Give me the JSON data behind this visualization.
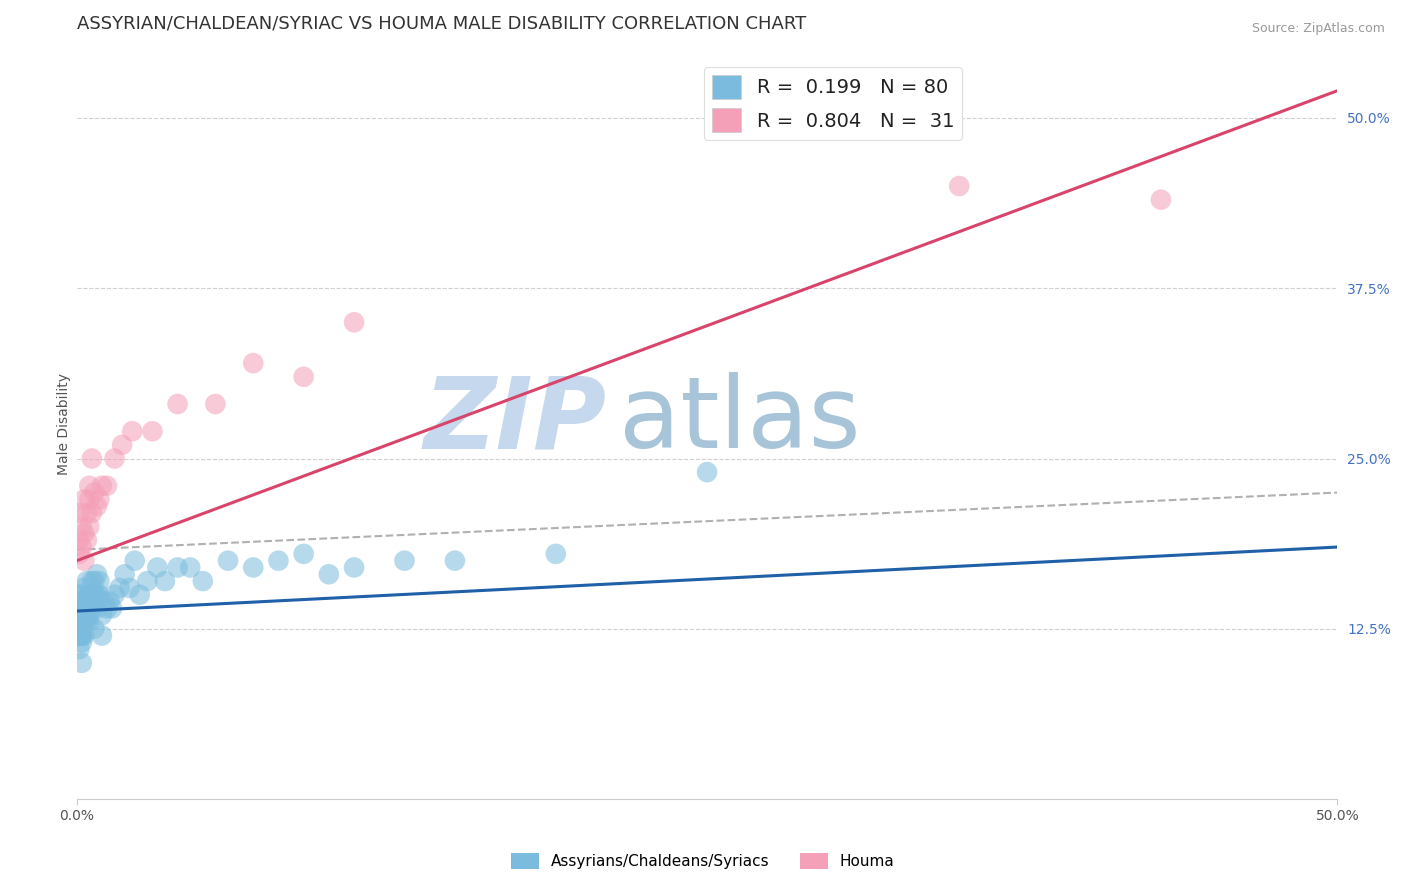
{
  "title": "ASSYRIAN/CHALDEAN/SYRIAC VS HOUMA MALE DISABILITY CORRELATION CHART",
  "source_text": "Source: ZipAtlas.com",
  "ylabel": "Male Disability",
  "xlim": [
    0.0,
    0.5
  ],
  "ylim": [
    0.0,
    0.55
  ],
  "yticks_right": [
    0.125,
    0.25,
    0.375,
    0.5
  ],
  "ytick_labels_right": [
    "12.5%",
    "25.0%",
    "37.5%",
    "50.0%"
  ],
  "blue_color": "#7bbcde",
  "pink_color": "#f4a0b8",
  "blue_line_color": "#2060a8",
  "pink_line_color": "#d9446a",
  "dashed_line_color": "#b0b0b0",
  "grid_color": "#d0d0d0",
  "R_blue": 0.199,
  "N_blue": 80,
  "R_pink": 0.804,
  "N_pink": 31,
  "legend_label_blue": "Assyrians/Chaldeans/Syriacs",
  "legend_label_pink": "Houma",
  "watermark_zip": "ZIP",
  "watermark_atlas": "atlas",
  "watermark_color_zip": "#c5d8ed",
  "watermark_color_atlas": "#a8c4d8",
  "title_fontsize": 13,
  "axis_label_fontsize": 10,
  "tick_fontsize": 10,
  "blue_line_x0": 0.0,
  "blue_line_y0": 0.138,
  "blue_line_x1": 0.5,
  "blue_line_y1": 0.185,
  "pink_line_x0": 0.0,
  "pink_line_y0": 0.175,
  "pink_line_x1": 0.5,
  "pink_line_y1": 0.52,
  "dash_line_x0": 0.0,
  "dash_line_y0": 0.183,
  "dash_line_x1": 0.5,
  "dash_line_y1": 0.225,
  "blue_scatter_x": [
    0.001,
    0.001,
    0.001,
    0.001,
    0.001,
    0.001,
    0.001,
    0.001,
    0.001,
    0.001,
    0.002,
    0.002,
    0.002,
    0.002,
    0.002,
    0.002,
    0.002,
    0.002,
    0.002,
    0.002,
    0.003,
    0.003,
    0.003,
    0.003,
    0.003,
    0.003,
    0.003,
    0.003,
    0.003,
    0.004,
    0.004,
    0.004,
    0.004,
    0.004,
    0.004,
    0.005,
    0.005,
    0.005,
    0.005,
    0.005,
    0.006,
    0.006,
    0.006,
    0.006,
    0.007,
    0.007,
    0.007,
    0.008,
    0.008,
    0.008,
    0.009,
    0.009,
    0.01,
    0.01,
    0.011,
    0.012,
    0.013,
    0.014,
    0.015,
    0.017,
    0.019,
    0.021,
    0.023,
    0.025,
    0.028,
    0.032,
    0.035,
    0.04,
    0.045,
    0.05,
    0.06,
    0.07,
    0.08,
    0.09,
    0.1,
    0.11,
    0.13,
    0.15,
    0.19,
    0.25
  ],
  "blue_scatter_y": [
    0.13,
    0.14,
    0.12,
    0.15,
    0.11,
    0.13,
    0.14,
    0.12,
    0.135,
    0.15,
    0.1,
    0.12,
    0.13,
    0.115,
    0.12,
    0.14,
    0.125,
    0.13,
    0.145,
    0.12,
    0.13,
    0.14,
    0.13,
    0.145,
    0.12,
    0.13,
    0.14,
    0.155,
    0.13,
    0.14,
    0.13,
    0.145,
    0.16,
    0.14,
    0.135,
    0.15,
    0.145,
    0.135,
    0.13,
    0.15,
    0.15,
    0.14,
    0.16,
    0.15,
    0.125,
    0.16,
    0.15,
    0.165,
    0.14,
    0.15,
    0.16,
    0.15,
    0.12,
    0.135,
    0.145,
    0.14,
    0.145,
    0.14,
    0.15,
    0.155,
    0.165,
    0.155,
    0.175,
    0.15,
    0.16,
    0.17,
    0.16,
    0.17,
    0.17,
    0.16,
    0.175,
    0.17,
    0.175,
    0.18,
    0.165,
    0.17,
    0.175,
    0.175,
    0.18,
    0.24
  ],
  "pink_scatter_x": [
    0.001,
    0.001,
    0.001,
    0.002,
    0.002,
    0.003,
    0.003,
    0.003,
    0.004,
    0.004,
    0.005,
    0.005,
    0.005,
    0.006,
    0.006,
    0.007,
    0.008,
    0.009,
    0.01,
    0.012,
    0.015,
    0.018,
    0.022,
    0.03,
    0.04,
    0.055,
    0.07,
    0.09,
    0.11,
    0.35,
    0.43
  ],
  "pink_scatter_y": [
    0.18,
    0.19,
    0.21,
    0.185,
    0.2,
    0.175,
    0.195,
    0.22,
    0.19,
    0.21,
    0.2,
    0.22,
    0.23,
    0.21,
    0.25,
    0.225,
    0.215,
    0.22,
    0.23,
    0.23,
    0.25,
    0.26,
    0.27,
    0.27,
    0.29,
    0.29,
    0.32,
    0.31,
    0.35,
    0.45,
    0.44
  ]
}
